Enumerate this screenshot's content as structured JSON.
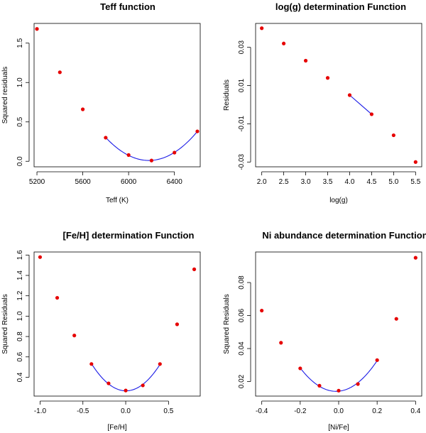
{
  "chart_data": [
    {
      "type": "scatter",
      "title": "Teff function",
      "xlabel": "Teff (K)",
      "ylabel": "Squared residuals",
      "xlim": [
        5175,
        6625
      ],
      "ylim": [
        -0.07,
        1.75
      ],
      "xticks": [
        5200,
        5600,
        6000,
        6400
      ],
      "yticks": [
        0.0,
        0.5,
        1.0,
        1.5
      ],
      "ytick_labels": [
        "0.0",
        "0.5",
        "1.0",
        "1.5"
      ],
      "points": {
        "x": [
          5200,
          5400,
          5600,
          5800,
          6000,
          6200,
          6400,
          6600
        ],
        "y": [
          1.68,
          1.13,
          0.66,
          0.3,
          0.08,
          0.01,
          0.11,
          0.38
        ]
      },
      "fit": {
        "kind": "quadratic",
        "x": [
          5800,
          6000,
          6200,
          6400,
          6600
        ],
        "y": [
          0.3,
          0.08,
          0.01,
          0.11,
          0.38
        ]
      }
    },
    {
      "type": "scatter",
      "title": "log(g) determination Function",
      "xlabel": "log(g)",
      "ylabel": "Residuals",
      "xlim": [
        1.86,
        5.64
      ],
      "ylim": [
        -0.0325,
        0.0425
      ],
      "xticks": [
        2.0,
        2.5,
        3.0,
        3.5,
        4.0,
        4.5,
        5.0,
        5.5
      ],
      "xtick_labels": [
        "2.0",
        "2.5",
        "3.0",
        "3.5",
        "4.0",
        "4.5",
        "5.0",
        "5.5"
      ],
      "yticks": [
        -0.03,
        -0.01,
        0.01,
        0.03
      ],
      "ytick_labels": [
        "-0.03",
        "-0.01",
        "0.01",
        "0.03"
      ],
      "points": {
        "x": [
          2.0,
          2.5,
          3.0,
          3.5,
          4.0,
          4.5,
          5.0,
          5.5
        ],
        "y": [
          0.04,
          0.032,
          0.023,
          0.014,
          0.005,
          -0.005,
          -0.016,
          -0.03
        ]
      },
      "fit": {
        "kind": "linear",
        "x": [
          4.0,
          4.5
        ],
        "y": [
          0.005,
          -0.005
        ]
      }
    },
    {
      "type": "scatter",
      "title": "[Fe/H] determination Function",
      "xlabel": "[Fe/H]",
      "ylabel": "Squared Residuals",
      "xlim": [
        -1.07,
        0.87
      ],
      "ylim": [
        0.215,
        1.63
      ],
      "xticks": [
        -1.0,
        -0.5,
        0.0,
        0.5
      ],
      "xtick_labels": [
        "-1.0",
        "-0.5",
        "0.0",
        "0.5"
      ],
      "yticks": [
        0.4,
        0.6,
        0.8,
        1.0,
        1.2,
        1.4,
        1.6
      ],
      "ytick_labels": [
        "0.4",
        "0.6",
        "0.8",
        "1.0",
        "1.2",
        "1.4",
        "1.6"
      ],
      "points": {
        "x": [
          -1.0,
          -0.8,
          -0.6,
          -0.4,
          -0.2,
          0.0,
          0.2,
          0.4,
          0.6,
          0.8
        ],
        "y": [
          1.58,
          1.18,
          0.81,
          0.53,
          0.34,
          0.27,
          0.32,
          0.53,
          0.92,
          1.46
        ]
      },
      "fit": {
        "kind": "quadratic",
        "x": [
          -0.4,
          -0.2,
          0.0,
          0.2,
          0.4
        ],
        "y": [
          0.53,
          0.34,
          0.27,
          0.32,
          0.53
        ]
      }
    },
    {
      "type": "scatter",
      "title": "Ni abundance determination Function",
      "xlabel": "[Ni/Fe]",
      "ylabel": "Squared Residuals",
      "xlim": [
        -0.432,
        0.432
      ],
      "ylim": [
        0.0112,
        0.0985
      ],
      "xticks": [
        -0.4,
        -0.2,
        0.0,
        0.2,
        0.4
      ],
      "xtick_labels": [
        "-0.4",
        "-0.2",
        "0.0",
        "0.2",
        "0.4"
      ],
      "yticks": [
        0.02,
        0.04,
        0.06,
        0.08
      ],
      "ytick_labels": [
        "0.02",
        "0.04",
        "0.06",
        "0.08"
      ],
      "points": {
        "x": [
          -0.4,
          -0.3,
          -0.2,
          -0.1,
          0.0,
          0.1,
          0.2,
          0.3,
          0.4
        ],
        "y": [
          0.063,
          0.0435,
          0.028,
          0.0175,
          0.0145,
          0.0185,
          0.033,
          0.058,
          0.095
        ]
      },
      "fit": {
        "kind": "quadratic",
        "x": [
          -0.2,
          -0.1,
          0.0,
          0.1,
          0.2
        ],
        "y": [
          0.028,
          0.0175,
          0.0145,
          0.0185,
          0.033
        ]
      }
    }
  ]
}
